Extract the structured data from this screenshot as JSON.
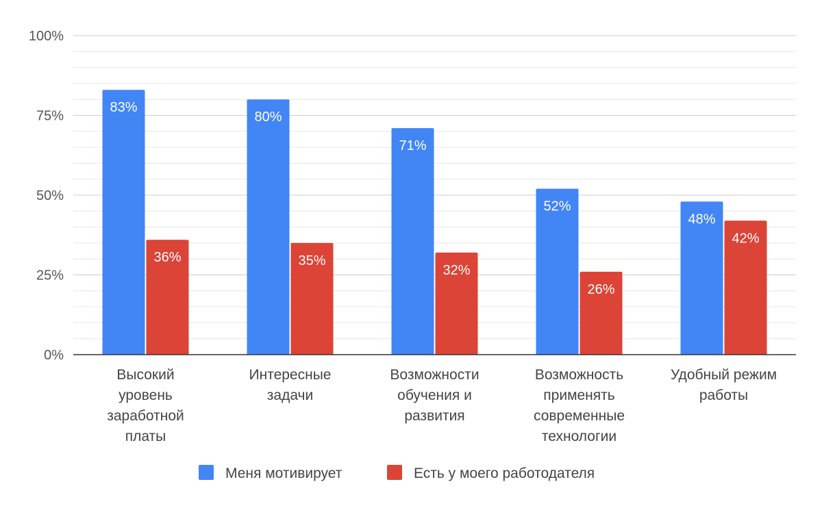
{
  "chart_data": {
    "type": "bar",
    "title": "",
    "xlabel": "",
    "ylabel": "",
    "ylim": [
      0,
      100
    ],
    "yticks": [
      "0%",
      "25%",
      "50%",
      "75%",
      "100%"
    ],
    "grid": true,
    "legend_position": "bottom",
    "categories": [
      [
        "Высокий",
        "уровень",
        "заработной",
        "платы"
      ],
      [
        "Интересные",
        "задачи"
      ],
      [
        "Возможности",
        "обучения и",
        "развития"
      ],
      [
        "Возможность",
        "применять",
        "современные",
        "технологии"
      ],
      [
        "Удобный режим",
        "работы"
      ]
    ],
    "series": [
      {
        "name": "Меня мотивирует",
        "color": "#4285f4",
        "values": [
          83,
          80,
          71,
          52,
          48
        ],
        "labels": [
          "83%",
          "80%",
          "71%",
          "52%",
          "48%"
        ]
      },
      {
        "name": "Есть у моего работодателя",
        "color": "#db4437",
        "values": [
          36,
          35,
          32,
          26,
          42
        ],
        "labels": [
          "36%",
          "35%",
          "32%",
          "26%",
          "42%"
        ]
      }
    ]
  }
}
